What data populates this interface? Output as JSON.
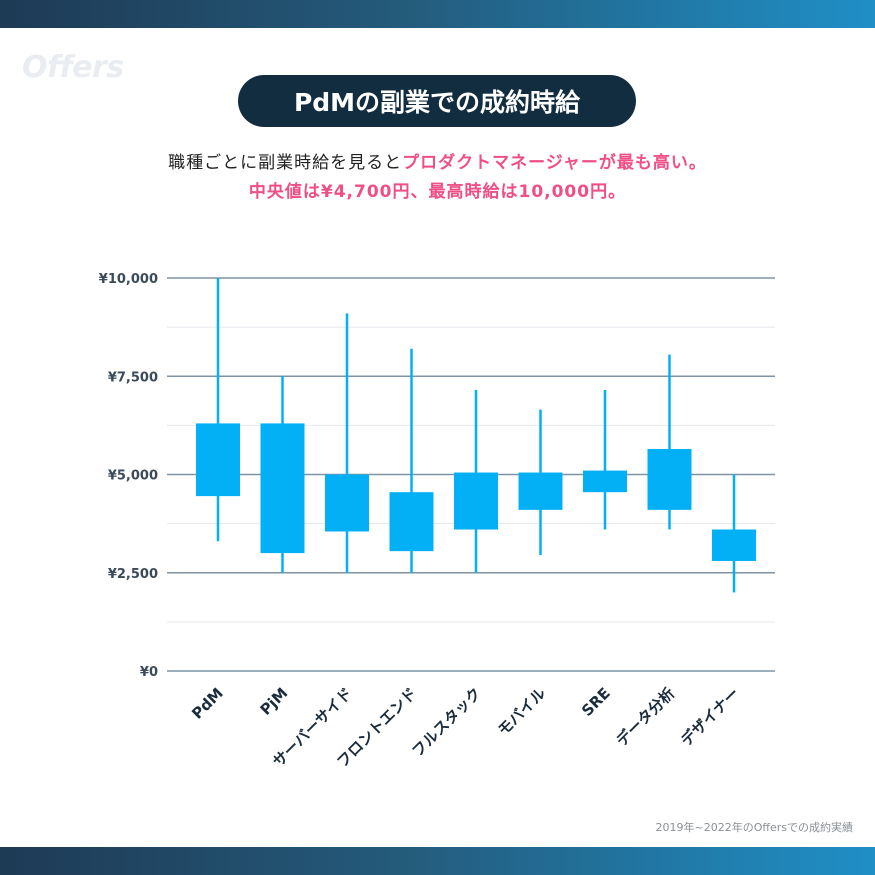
{
  "header": {
    "logo_text": "Offers",
    "title": "PdMの副業での成約時給",
    "subtitle_line1_plain": "職種ごとに副業時給を見ると",
    "subtitle_line1_highlight": "プロダクトマネージャーが最も高い。",
    "subtitle_line2": "中央値は¥4,700円、最高時給は10,000円。"
  },
  "footer": {
    "note": "2019年~2022年のOffersでの成約実績"
  },
  "colors": {
    "band_gradient_start": "#1e3a55",
    "band_gradient_end": "#1f8fc6",
    "title_pill": "#132d40",
    "highlight": "#ef4f86",
    "box_fill": "#03b0f5",
    "gridline_major": "#7f93a3",
    "gridline_minor": "#e3e8ec"
  },
  "chart_data": {
    "type": "box",
    "title": "PdMの副業での成約時給",
    "xlabel": "",
    "ylabel": "",
    "ylim": [
      0,
      10000
    ],
    "y_ticks": [
      0,
      2500,
      5000,
      7500,
      10000
    ],
    "y_tick_labels": [
      "¥0",
      "¥2,500",
      "¥5,000",
      "¥7,500",
      "¥10,000"
    ],
    "minor_gridlines": [
      1250,
      3750,
      6250,
      8750
    ],
    "categories": [
      "PdM",
      "PjM",
      "サーバーサイド",
      "フロントエンド",
      "フルスタック",
      "モバイル",
      "SRE",
      "データ分析",
      "デザイナー"
    ],
    "series": [
      {
        "boxes": [
          {
            "min": 3300,
            "q1": 4450,
            "q3": 6300,
            "max": 10000
          },
          {
            "min": 2500,
            "q1": 3000,
            "q3": 6300,
            "max": 7500
          },
          {
            "min": 2500,
            "q1": 3550,
            "q3": 5000,
            "max": 9100
          },
          {
            "min": 2500,
            "q1": 3050,
            "q3": 4550,
            "max": 8200
          },
          {
            "min": 2500,
            "q1": 3600,
            "q3": 5050,
            "max": 7150
          },
          {
            "min": 2950,
            "q1": 4100,
            "q3": 5050,
            "max": 6650
          },
          {
            "min": 3600,
            "q1": 4550,
            "q3": 5100,
            "max": 7150
          },
          {
            "min": 3600,
            "q1": 4100,
            "q3": 5650,
            "max": 8050
          },
          {
            "min": 2000,
            "q1": 2800,
            "q3": 3600,
            "max": 5000
          }
        ]
      }
    ],
    "grid": true
  }
}
